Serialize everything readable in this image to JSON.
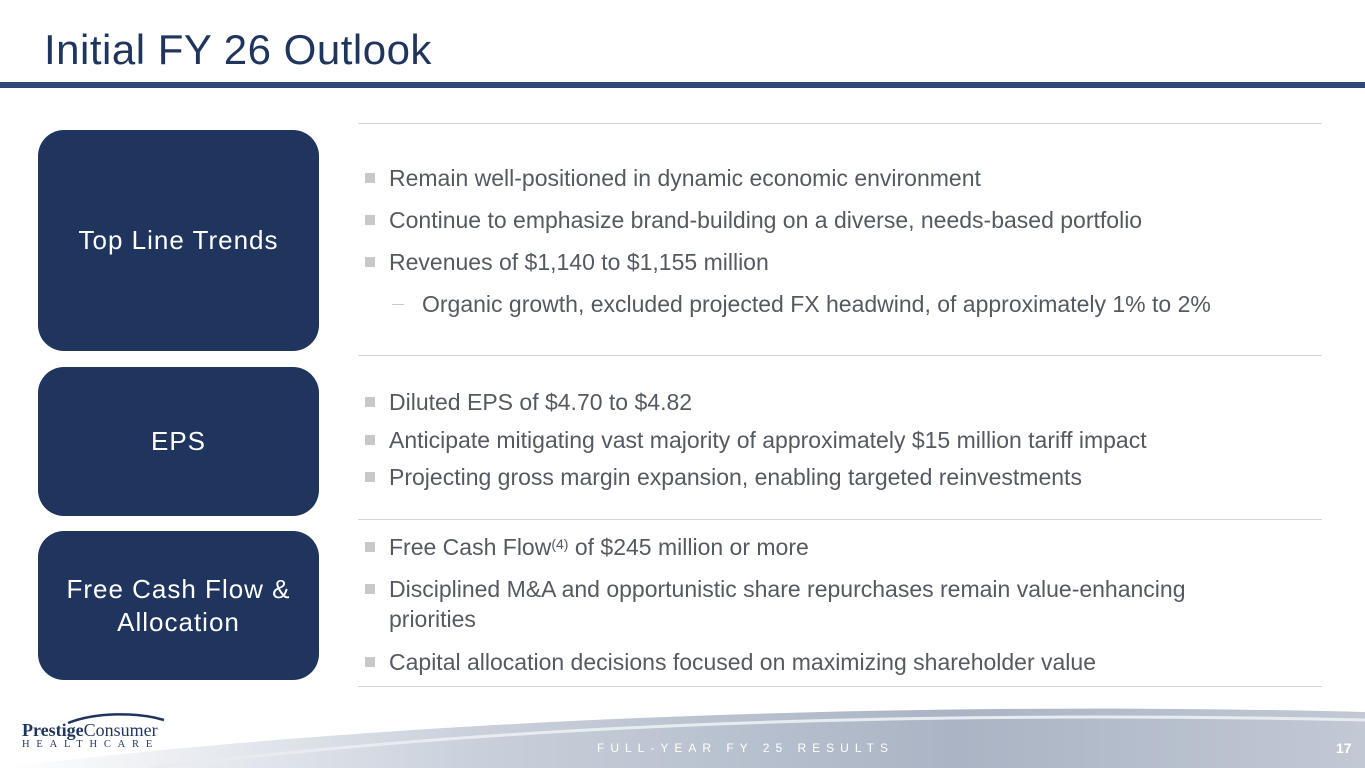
{
  "slide": {
    "title": "Initial FY 26 Outlook",
    "page_number": "17",
    "footer_text": "FULL-YEAR FY 25 RESULTS"
  },
  "logo": {
    "line1_bold": "Prestige",
    "line1_rest": "Consumer",
    "line2": "HEALTHCARE"
  },
  "sections": [
    {
      "label": "Top Line Trends",
      "bullets": [
        "Remain well-positioned in dynamic economic environment",
        "Continue to emphasize brand-building on a diverse, needs-based portfolio",
        "Revenues of $1,140 to $1,155 million"
      ],
      "sub_bullets": [
        "Organic growth, excluded projected FX headwind, of approximately 1% to 2%"
      ]
    },
    {
      "label": "EPS",
      "bullets": [
        "Diluted EPS of $4.70 to $4.82",
        "Anticipate mitigating vast majority of approximately $15 million tariff impact",
        "Projecting gross margin expansion, enabling targeted reinvestments"
      ]
    },
    {
      "label_line1": "Free Cash Flow &",
      "label_line2": "Allocation",
      "bullet1_pre": "Free Cash Flow",
      "bullet1_sup": "(4)",
      "bullet1_post": " of $245 million or more",
      "bullet2_line1": "Disciplined M&A and opportunistic share repurchases remain value-enhancing",
      "bullet2_line2": "priorities",
      "bullet3": "Capital allocation decisions focused on maximizing shareholder value"
    }
  ],
  "colors": {
    "navy": "#1f355e",
    "rule": "#2f4a77",
    "body_text": "#555a60",
    "bullet_square": "#c8c8c8"
  }
}
